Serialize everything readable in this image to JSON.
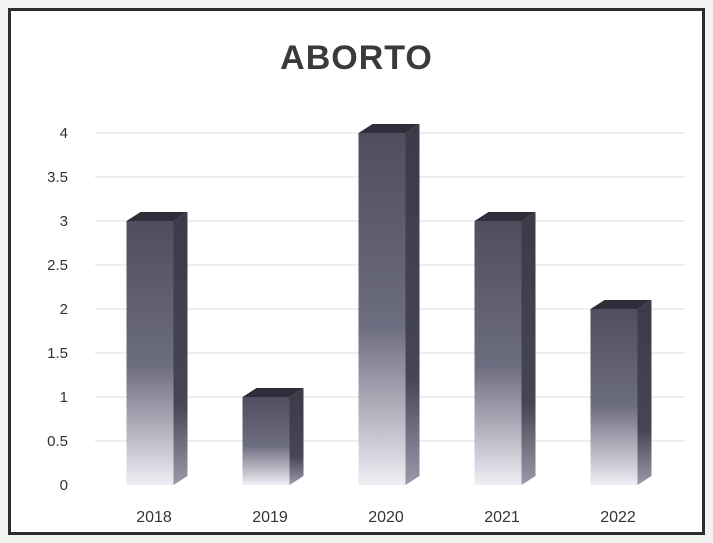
{
  "chart_data": {
    "type": "bar",
    "title": "ABORTO",
    "categories": [
      "2018",
      "2019",
      "2020",
      "2021",
      "2022"
    ],
    "values": [
      3,
      1,
      4,
      3,
      2
    ],
    "ylim": [
      0,
      4
    ],
    "yticks": [
      "0",
      "0.5",
      "1",
      "1.5",
      "2",
      "2.5",
      "3",
      "3.5",
      "4"
    ],
    "grid": true,
    "bar_style": "3d-cylinder-gradient",
    "colors": {
      "bar_dark": "#4e4e5e",
      "bar_light": "#eeeef4",
      "bar_side": "#3b3b48",
      "bar_top": "#2e2e3a",
      "grid": "#dcdcdc"
    }
  }
}
